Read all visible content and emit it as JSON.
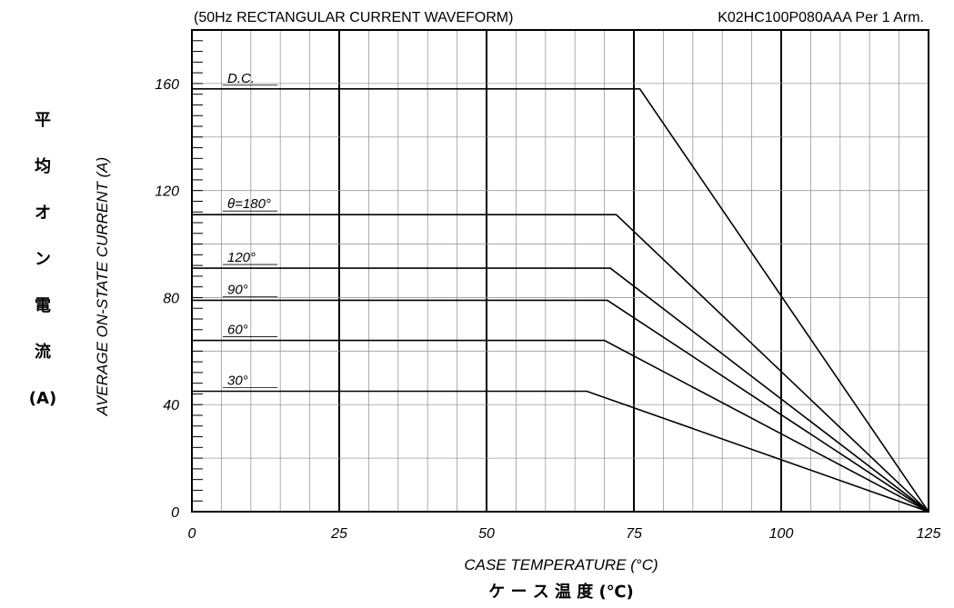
{
  "chart_data": {
    "type": "line",
    "header_left": "(50Hz RECTANGULAR CURRENT WAVEFORM)",
    "header_right": "K02HC100P080AAA  Per 1 Arm.",
    "xlabel": "CASE TEMPERATURE (°C)",
    "xlabel_jp": "ケ ー ス 温 度 (℃)",
    "ylabel": "AVERAGE ON-STATE CURRENT (A)",
    "ylabel_jp": [
      "平",
      "均",
      "オ",
      "ン",
      "電",
      "流",
      "(A)"
    ],
    "xlim": [
      0,
      125
    ],
    "ylim": [
      0,
      180
    ],
    "x_ticks": [
      0,
      25,
      50,
      75,
      100,
      125
    ],
    "x_tick_labels": [
      "0",
      "25",
      "50",
      "75",
      "100",
      "125"
    ],
    "y_ticks": [
      0,
      40,
      80,
      120,
      160
    ],
    "y_tick_labels": [
      "0",
      "40",
      "80",
      "120",
      "160"
    ],
    "grid": true,
    "series": [
      {
        "name": "D.C.",
        "points": [
          [
            0,
            158
          ],
          [
            76,
            158
          ],
          [
            125,
            0
          ]
        ]
      },
      {
        "name": "θ=180°",
        "points": [
          [
            0,
            111
          ],
          [
            72,
            111
          ],
          [
            125,
            0
          ]
        ]
      },
      {
        "name": "120°",
        "points": [
          [
            0,
            91
          ],
          [
            71,
            91
          ],
          [
            125,
            0
          ]
        ]
      },
      {
        "name": "90°",
        "points": [
          [
            0,
            79
          ],
          [
            70.5,
            79
          ],
          [
            125,
            0
          ]
        ]
      },
      {
        "name": "60°",
        "points": [
          [
            0,
            64
          ],
          [
            70,
            64
          ],
          [
            125,
            0
          ]
        ]
      },
      {
        "name": "30°",
        "points": [
          [
            0,
            45
          ],
          [
            67,
            45
          ],
          [
            125,
            0
          ]
        ]
      }
    ]
  }
}
